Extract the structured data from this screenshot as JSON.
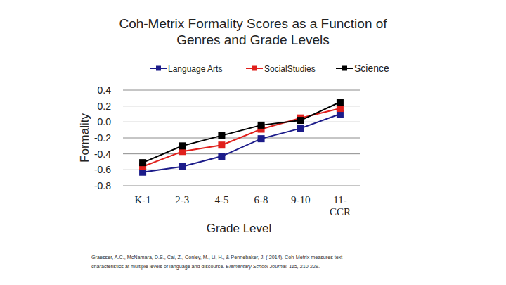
{
  "chart_data": {
    "type": "line",
    "title": "Coh-Metrix Formality Scores as a Function of\nGenres and Grade Levels",
    "x_label": "Grade Level",
    "y_label": "Formality",
    "categories": [
      "K-1",
      "2-3",
      "4-5",
      "6-8",
      "9-10",
      "11-\nCCR"
    ],
    "series": [
      {
        "name": "Language Arts",
        "color": "#1c1c8a",
        "marker": "square",
        "line_style": "solid",
        "values": [
          -0.63,
          -0.56,
          -0.43,
          -0.21,
          -0.08,
          0.1
        ]
      },
      {
        "name": "SocialStudies",
        "color": "#e0201c",
        "marker": "square",
        "line_style": "solid",
        "values": [
          -0.56,
          -0.37,
          -0.29,
          -0.09,
          0.05,
          0.17
        ]
      },
      {
        "name": "Science",
        "color": "#000000",
        "marker": "square",
        "line_style": "solid",
        "values": [
          -0.51,
          -0.3,
          -0.17,
          -0.04,
          0.02,
          0.25
        ]
      }
    ],
    "ylim": [
      -0.8,
      0.4
    ],
    "yticks": [
      0.4,
      0.2,
      {
        "value": 0,
        "label": "0.0"
      },
      -0.2,
      -0.4,
      -0.6,
      -0.8
    ],
    "grid": true,
    "legend": "top",
    "annotations": [
      "Graesser, A.C., McNamara, D.S., Cai, Z., Conley, M., Li, H., & Pennebaker, J. ( 2014). Coh-Metrix measures text",
      "characteristics at multiple levels of language and discourse.",
      "Elementary School Journal. 115,",
      "210-229."
    ]
  }
}
